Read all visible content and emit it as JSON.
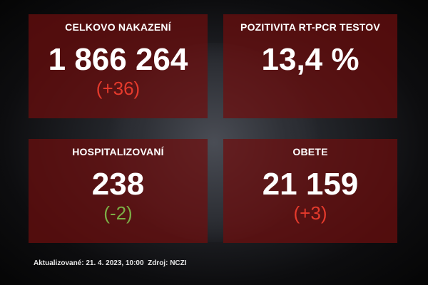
{
  "cards": [
    {
      "title": "CELKOVO NAKAZENÍ",
      "value": "1 866 264",
      "delta": "(+36)",
      "delta_color": "#e53a2c"
    },
    {
      "title": "POZITIVITA RT-PCR TESTOV",
      "value": "13,4 %"
    },
    {
      "title": "HOSPITALIZOVANÍ",
      "value": "238",
      "delta": "(-2)",
      "delta_color": "#7cae46"
    },
    {
      "title": "OBETE",
      "value": "21 159",
      "delta": "(+3)",
      "delta_color": "#e53a2c"
    }
  ],
  "footer": {
    "updated": "Aktualizované: 21. 4. 2023, 10:00",
    "source": "Zdroj: NCZI"
  }
}
